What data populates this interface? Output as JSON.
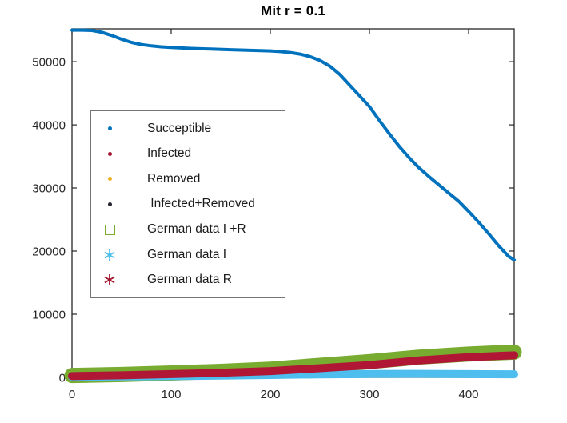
{
  "title": "Mit r = 0.1",
  "axes": {
    "xlim": [
      0,
      446
    ],
    "ylim": [
      0,
      55200
    ],
    "xticks": [
      0,
      100,
      200,
      300,
      400
    ],
    "yticks": [
      0,
      10000,
      20000,
      30000,
      40000,
      50000
    ],
    "axis_color": "#262626",
    "grid": false
  },
  "legend": {
    "entries": [
      {
        "label": "Succeptible",
        "marker": "dot",
        "color": "#0072BD"
      },
      {
        "label": "Infected",
        "marker": "dot",
        "color": "#A2142F"
      },
      {
        "label": "Removed",
        "marker": "dot",
        "color": "#EDB120"
      },
      {
        "label": " Infected+Removed",
        "marker": "dot",
        "color": "#26262e"
      },
      {
        "label": "German data I +R",
        "marker": "square",
        "color": "#77AC30"
      },
      {
        "label": "German data I",
        "marker": "asterisk",
        "color": "#4DBEEE"
      },
      {
        "label": "German data R",
        "marker": "asterisk",
        "color": "#A2142F"
      }
    ]
  },
  "chart_data": {
    "type": "line",
    "title": "Mit r = 0.1",
    "xlabel": "",
    "ylabel": "",
    "xlim": [
      0,
      446
    ],
    "ylim": [
      0,
      55200
    ],
    "xticks": [
      0,
      100,
      200,
      300,
      400
    ],
    "yticks": [
      0,
      10000,
      20000,
      30000,
      40000,
      50000
    ],
    "grid": false,
    "legend_position": "upper-left-inside",
    "series": [
      {
        "name": "Succeptible",
        "color": "#0072BD",
        "width": 4,
        "x": [
          0,
          10,
          20,
          30,
          40,
          50,
          60,
          70,
          80,
          90,
          100,
          120,
          140,
          160,
          180,
          200,
          210,
          220,
          230,
          240,
          250,
          260,
          270,
          280,
          290,
          300,
          310,
          320,
          330,
          340,
          350,
          360,
          370,
          380,
          390,
          400,
          410,
          420,
          430,
          440,
          446
        ],
        "y": [
          55000,
          55000,
          54950,
          54650,
          54150,
          53550,
          53050,
          52700,
          52500,
          52350,
          52250,
          52100,
          52000,
          51900,
          51800,
          51700,
          51600,
          51450,
          51200,
          50800,
          50200,
          49300,
          48000,
          46300,
          44600,
          42900,
          40700,
          38600,
          36600,
          34800,
          33200,
          31800,
          30500,
          29200,
          27900,
          26300,
          24600,
          22800,
          20900,
          19200,
          18600
        ]
      },
      {
        "name": "German data I +R",
        "color": "#77AC30",
        "width": 19,
        "x": [
          0,
          50,
          100,
          150,
          200,
          250,
          300,
          350,
          400,
          446
        ],
        "y": [
          300,
          450,
          700,
          950,
          1300,
          1900,
          2500,
          3200,
          3700,
          4000
        ]
      },
      {
        "name": "German data I",
        "color": "#4DBEEE",
        "width": 10,
        "x": [
          0,
          50,
          100,
          150,
          200,
          250,
          300,
          350,
          400,
          446
        ],
        "y": [
          100,
          150,
          200,
          280,
          380,
          480,
          550,
          560,
          520,
          500
        ]
      },
      {
        "name": "German data R",
        "color": "#B01735",
        "width": 10,
        "x": [
          0,
          50,
          100,
          150,
          200,
          250,
          300,
          350,
          400,
          446
        ],
        "y": [
          200,
          330,
          520,
          720,
          1000,
          1450,
          1950,
          2700,
          3200,
          3500
        ]
      }
    ]
  }
}
